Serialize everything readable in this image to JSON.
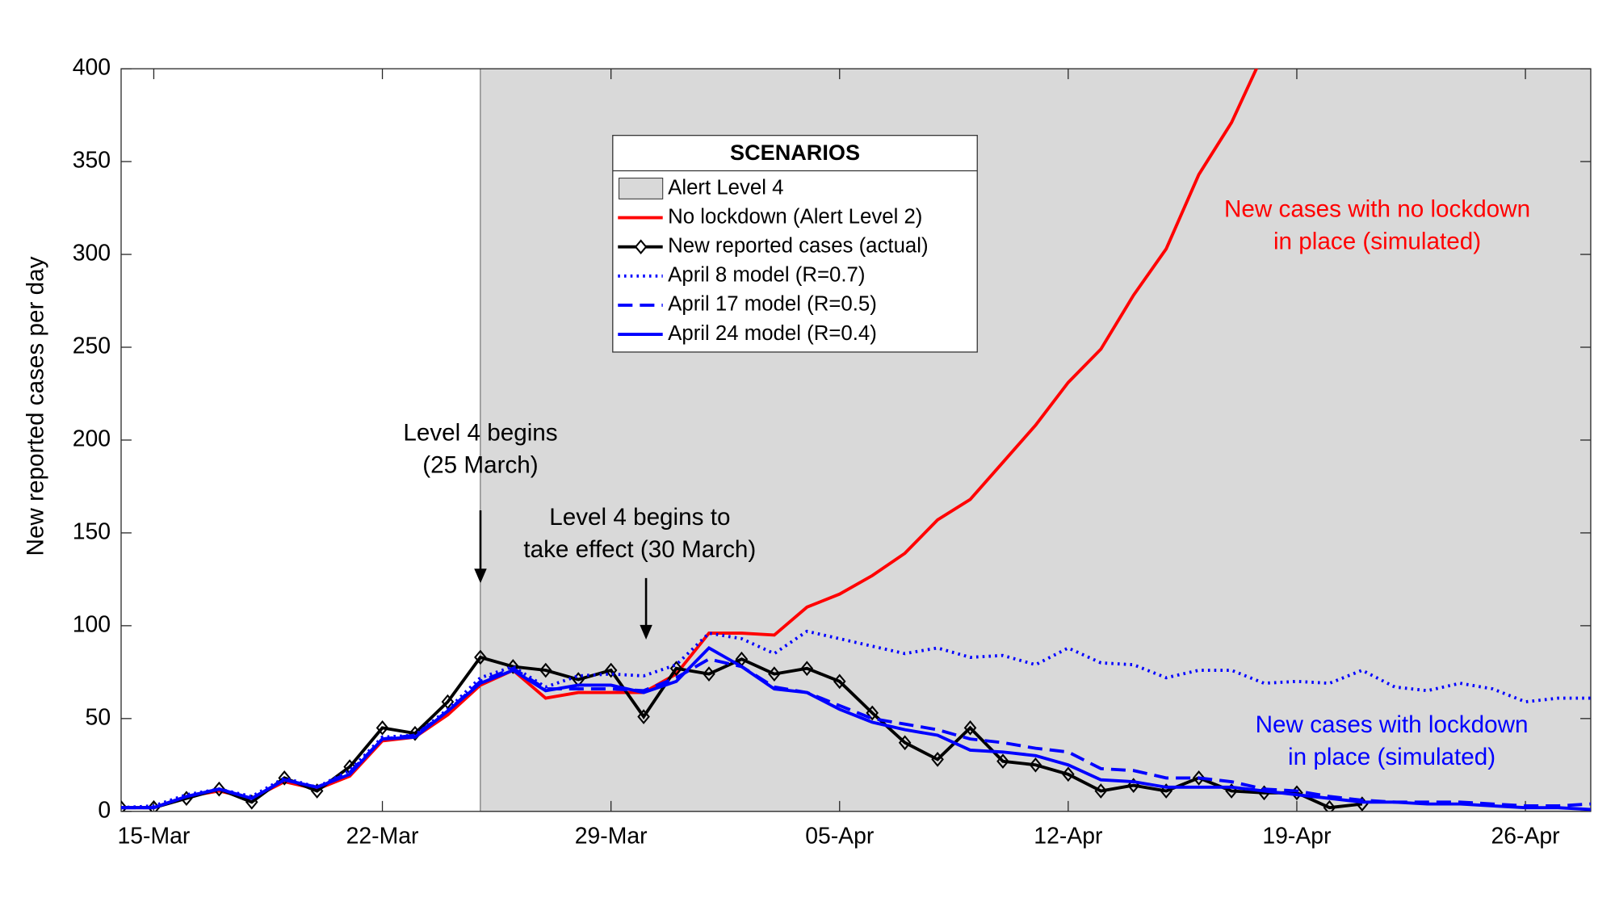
{
  "chart_data": {
    "type": "line",
    "y_label": "New reported cases per day",
    "categories": [
      null,
      "15-Mar",
      null,
      null,
      null,
      null,
      null,
      null,
      "22-Mar",
      null,
      null,
      null,
      null,
      null,
      null,
      "29-Mar",
      null,
      null,
      null,
      null,
      null,
      null,
      "05-Apr",
      null,
      null,
      null,
      null,
      null,
      null,
      "12-Apr",
      null,
      null,
      null,
      null,
      null,
      null,
      "19-Apr",
      null,
      null,
      null,
      null,
      null,
      null,
      "26-Apr",
      null,
      null
    ],
    "ylim": [
      0,
      400
    ],
    "yticks": [
      0,
      50,
      100,
      150,
      200,
      250,
      300,
      350,
      400
    ],
    "shade": {
      "name": "Alert Level 4",
      "color": "#d9d9d9",
      "xrange": [
        11,
        45
      ]
    },
    "legend_title": "SCENARIOS",
    "series": [
      {
        "name": "No lockdown (Alert Level 2)",
        "color": "#ff0000",
        "dash": "solid",
        "values": [
          2,
          2,
          8,
          11,
          7,
          16,
          12,
          19,
          38,
          40,
          52,
          68,
          76,
          61,
          64,
          64,
          64,
          74,
          96,
          96,
          95,
          110,
          117,
          127,
          139,
          157,
          168,
          188,
          208,
          231,
          249,
          278,
          303,
          343,
          371,
          409,
          null,
          null,
          null,
          null,
          null,
          null,
          null,
          null,
          null,
          null
        ]
      },
      {
        "name": "New reported cases (actual)",
        "color": "#000000",
        "dash": "solid",
        "marker": "diamond",
        "values": [
          2,
          2,
          7,
          12,
          5,
          18,
          11,
          24,
          45,
          42,
          59,
          83,
          78,
          76,
          71,
          76,
          51,
          77,
          74,
          82,
          74,
          77,
          70,
          53,
          37,
          28,
          45,
          27,
          25,
          20,
          11,
          14,
          11,
          18,
          11,
          10,
          10,
          2,
          4,
          null,
          null,
          null,
          null,
          null,
          null,
          null
        ]
      },
      {
        "name": "April 8 model (R=0.7)",
        "color": "#0000ff",
        "dash": "dotted",
        "values": [
          2,
          3,
          9,
          12,
          8,
          18,
          13,
          22,
          40,
          41,
          55,
          72,
          78,
          67,
          73,
          74,
          73,
          79,
          96,
          93,
          85,
          97,
          93,
          89,
          85,
          88,
          83,
          84,
          79,
          88,
          80,
          79,
          72,
          76,
          76,
          69,
          70,
          69,
          76,
          67,
          65,
          69,
          66,
          59,
          61,
          61
        ]
      },
      {
        "name": "April 17 model (R=0.5)",
        "color": "#0000ff",
        "dash": "dashed",
        "values": [
          2,
          2,
          8,
          12,
          7,
          17,
          13,
          21,
          39,
          41,
          54,
          70,
          77,
          66,
          66,
          66,
          65,
          72,
          82,
          78,
          67,
          64,
          57,
          50,
          47,
          44,
          39,
          37,
          34,
          32,
          23,
          22,
          18,
          18,
          16,
          12,
          11,
          8,
          6,
          5,
          5,
          5,
          4,
          3,
          3,
          4
        ]
      },
      {
        "name": "April 24 model (R=0.4)",
        "color": "#0000ff",
        "dash": "solid",
        "values": [
          2,
          2,
          8,
          12,
          7,
          17,
          13,
          20,
          39,
          40,
          54,
          69,
          76,
          65,
          68,
          68,
          64,
          70,
          88,
          78,
          66,
          64,
          55,
          48,
          44,
          41,
          33,
          32,
          30,
          25,
          17,
          16,
          13,
          13,
          13,
          11,
          9,
          7,
          5,
          5,
          4,
          4,
          3,
          2,
          2,
          1
        ]
      }
    ],
    "annotations": [
      {
        "lines": [
          "Level 4 begins",
          "(25 March)"
        ],
        "color": "#000000"
      },
      {
        "lines": [
          "Level 4 begins to",
          "take effect (30 March)"
        ],
        "color": "#000000"
      },
      {
        "lines": [
          "New cases with no lockdown",
          "in place (simulated)"
        ],
        "color": "#ff0000"
      },
      {
        "lines": [
          "New cases with lockdown",
          "in place (simulated)"
        ],
        "color": "#0000ff"
      }
    ]
  }
}
